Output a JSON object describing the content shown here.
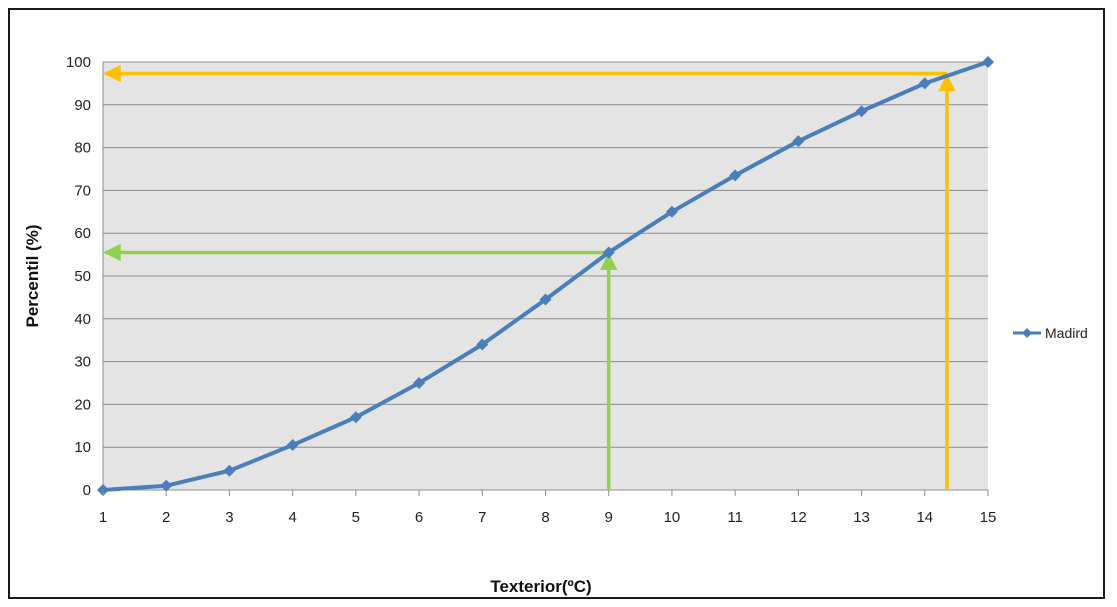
{
  "chart_data": {
    "type": "line",
    "xlabel": "Texterior(ºC)",
    "ylabel": "Percentil (%)",
    "x": [
      1,
      2,
      3,
      4,
      5,
      6,
      7,
      8,
      9,
      10,
      11,
      12,
      13,
      14,
      15
    ],
    "xlim": [
      1,
      15
    ],
    "ylim": [
      0,
      100
    ],
    "yticks": [
      0,
      10,
      20,
      30,
      40,
      50,
      60,
      70,
      80,
      90,
      100
    ],
    "grid": true,
    "legend_position": "right",
    "series": [
      {
        "name": "Madird",
        "color": "#4a7ebb",
        "values": [
          0,
          1,
          4.5,
          10.5,
          17,
          25,
          34,
          44.5,
          55.5,
          65,
          73.5,
          81.5,
          88.5,
          95,
          100
        ]
      }
    ],
    "annotations": [
      {
        "color": "#92d050",
        "x": 9,
        "y": 55.5
      },
      {
        "color": "#ffc000",
        "x": 14.35,
        "y": 97.3
      }
    ],
    "plot_background": "#e4e4e4"
  }
}
